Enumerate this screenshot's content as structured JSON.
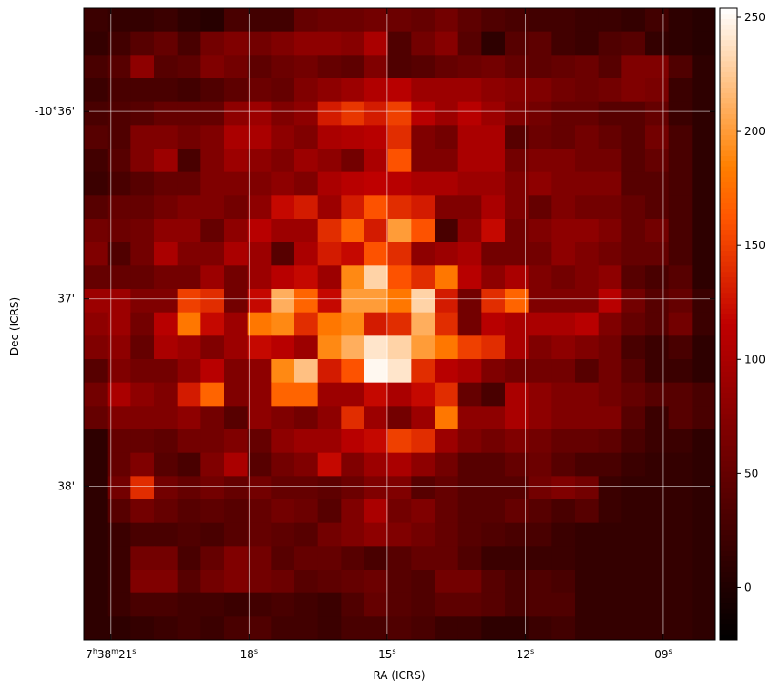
{
  "chart_data": {
    "type": "heatmap",
    "xlabel": "RA (ICRS)",
    "ylabel": "Dec (ICRS)",
    "colormap": "gist_heat",
    "grid": true,
    "xlim": [
      21.59,
      7.87
    ],
    "xticks": [
      {
        "value": 21,
        "label": "7h38m21s"
      },
      {
        "value": 18,
        "label": "18s"
      },
      {
        "value": 15,
        "label": "15s"
      },
      {
        "value": 12,
        "label": "12s"
      },
      {
        "value": 9,
        "label": "09s"
      }
    ],
    "ylim": [
      38.82,
      35.45
    ],
    "yticks": [
      {
        "value": 36,
        "label": "-10°36'"
      },
      {
        "value": 37,
        "label": "37'"
      },
      {
        "value": 38,
        "label": "38'"
      }
    ],
    "clim": [
      -23,
      254
    ],
    "cticks": [
      0,
      50,
      100,
      150,
      200,
      250
    ],
    "z": [
      [
        20,
        15,
        15,
        20,
        10,
        5,
        30,
        25,
        25,
        50,
        55,
        55,
        60,
        55,
        50,
        60,
        45,
        35,
        30,
        25,
        25,
        20,
        20,
        15,
        25,
        10,
        5
      ],
      [
        15,
        25,
        40,
        50,
        30,
        60,
        70,
        60,
        70,
        80,
        80,
        75,
        100,
        35,
        60,
        75,
        40,
        10,
        40,
        45,
        25,
        20,
        35,
        40,
        15,
        10,
        5
      ],
      [
        30,
        40,
        80,
        40,
        45,
        70,
        60,
        45,
        55,
        60,
        50,
        45,
        70,
        35,
        40,
        50,
        55,
        60,
        50,
        45,
        50,
        55,
        40,
        70,
        70,
        35,
        10
      ],
      [
        20,
        30,
        30,
        30,
        25,
        35,
        45,
        55,
        50,
        70,
        80,
        90,
        105,
        110,
        90,
        90,
        90,
        80,
        75,
        70,
        60,
        55,
        60,
        70,
        65,
        20,
        10
      ],
      [
        30,
        35,
        40,
        50,
        50,
        50,
        80,
        90,
        70,
        80,
        130,
        145,
        130,
        150,
        110,
        90,
        110,
        90,
        70,
        60,
        50,
        50,
        40,
        40,
        50,
        20,
        10
      ],
      [
        40,
        35,
        70,
        70,
        60,
        70,
        100,
        100,
        80,
        70,
        100,
        105,
        110,
        140,
        70,
        60,
        100,
        100,
        40,
        55,
        50,
        60,
        50,
        40,
        60,
        30,
        10
      ],
      [
        25,
        40,
        70,
        90,
        30,
        70,
        90,
        80,
        70,
        90,
        80,
        60,
        100,
        160,
        70,
        70,
        100,
        100,
        60,
        70,
        70,
        60,
        60,
        40,
        50,
        30,
        10
      ],
      [
        20,
        30,
        40,
        50,
        50,
        70,
        70,
        70,
        80,
        70,
        100,
        110,
        115,
        110,
        100,
        100,
        90,
        90,
        70,
        80,
        70,
        70,
        70,
        40,
        40,
        30,
        10
      ],
      [
        40,
        50,
        50,
        60,
        70,
        70,
        60,
        80,
        120,
        130,
        90,
        130,
        160,
        140,
        130,
        70,
        70,
        100,
        70,
        50,
        70,
        60,
        60,
        50,
        40,
        30,
        10
      ],
      [
        60,
        55,
        60,
        80,
        80,
        50,
        80,
        110,
        90,
        90,
        140,
        170,
        130,
        200,
        160,
        30,
        80,
        120,
        60,
        70,
        80,
        80,
        70,
        50,
        60,
        30,
        10
      ],
      [
        70,
        35,
        60,
        100,
        70,
        70,
        100,
        90,
        40,
        100,
        130,
        120,
        160,
        140,
        80,
        90,
        100,
        60,
        60,
        60,
        80,
        70,
        60,
        50,
        50,
        30,
        10
      ],
      [
        50,
        50,
        50,
        60,
        60,
        90,
        60,
        90,
        110,
        120,
        90,
        190,
        230,
        160,
        140,
        180,
        110,
        80,
        100,
        70,
        60,
        70,
        80,
        40,
        30,
        40,
        10
      ],
      [
        90,
        90,
        70,
        70,
        150,
        140,
        60,
        120,
        210,
        170,
        120,
        200,
        200,
        180,
        230,
        130,
        60,
        140,
        170,
        70,
        70,
        70,
        110,
        60,
        40,
        50,
        20
      ],
      [
        80,
        90,
        60,
        110,
        180,
        120,
        90,
        180,
        190,
        140,
        180,
        190,
        130,
        140,
        210,
        140,
        60,
        110,
        100,
        100,
        100,
        110,
        70,
        50,
        40,
        60,
        20
      ],
      [
        70,
        80,
        50,
        100,
        90,
        70,
        90,
        120,
        110,
        90,
        190,
        210,
        240,
        230,
        200,
        180,
        150,
        140,
        100,
        70,
        80,
        70,
        60,
        30,
        20,
        30,
        10
      ],
      [
        40,
        70,
        60,
        60,
        80,
        110,
        70,
        80,
        190,
        220,
        130,
        160,
        250,
        240,
        140,
        110,
        100,
        70,
        60,
        60,
        60,
        40,
        60,
        40,
        20,
        20,
        10
      ],
      [
        60,
        100,
        80,
        70,
        130,
        170,
        70,
        80,
        170,
        170,
        90,
        90,
        120,
        100,
        120,
        140,
        50,
        30,
        100,
        80,
        70,
        70,
        60,
        50,
        40,
        40,
        30
      ],
      [
        50,
        70,
        70,
        70,
        80,
        60,
        40,
        80,
        70,
        60,
        80,
        140,
        90,
        60,
        90,
        180,
        80,
        80,
        100,
        80,
        70,
        70,
        70,
        40,
        20,
        40,
        30
      ],
      [
        10,
        50,
        50,
        45,
        60,
        60,
        70,
        50,
        80,
        90,
        90,
        110,
        120,
        150,
        140,
        90,
        70,
        60,
        70,
        60,
        50,
        50,
        45,
        30,
        20,
        20,
        10
      ],
      [
        10,
        50,
        70,
        40,
        30,
        70,
        100,
        40,
        60,
        70,
        120,
        70,
        90,
        100,
        80,
        60,
        40,
        40,
        50,
        55,
        40,
        30,
        30,
        20,
        15,
        15,
        10
      ],
      [
        10,
        60,
        140,
        60,
        50,
        60,
        50,
        60,
        50,
        50,
        45,
        55,
        70,
        70,
        40,
        50,
        40,
        40,
        40,
        60,
        70,
        60,
        20,
        15,
        15,
        15,
        10
      ],
      [
        10,
        40,
        60,
        50,
        40,
        45,
        40,
        50,
        60,
        55,
        40,
        70,
        100,
        60,
        70,
        50,
        40,
        40,
        50,
        40,
        30,
        40,
        20,
        15,
        15,
        15,
        10
      ],
      [
        10,
        20,
        30,
        30,
        35,
        30,
        40,
        50,
        45,
        40,
        60,
        70,
        80,
        70,
        60,
        50,
        40,
        35,
        30,
        30,
        20,
        15,
        15,
        15,
        15,
        15,
        10
      ],
      [
        10,
        20,
        60,
        60,
        30,
        50,
        70,
        60,
        40,
        50,
        50,
        40,
        30,
        40,
        50,
        50,
        35,
        20,
        20,
        20,
        20,
        15,
        15,
        15,
        15,
        15,
        10
      ],
      [
        10,
        20,
        70,
        70,
        40,
        60,
        70,
        60,
        55,
        40,
        45,
        50,
        55,
        40,
        35,
        60,
        60,
        40,
        30,
        35,
        30,
        15,
        15,
        15,
        15,
        15,
        10
      ],
      [
        10,
        20,
        30,
        30,
        25,
        25,
        20,
        25,
        30,
        25,
        20,
        35,
        50,
        40,
        35,
        45,
        45,
        40,
        30,
        35,
        35,
        15,
        15,
        15,
        15,
        15,
        10
      ],
      [
        10,
        10,
        15,
        20,
        25,
        20,
        30,
        35,
        25,
        25,
        20,
        30,
        30,
        35,
        30,
        20,
        20,
        10,
        10,
        20,
        25,
        15,
        15,
        15,
        15,
        15,
        10
      ]
    ]
  }
}
